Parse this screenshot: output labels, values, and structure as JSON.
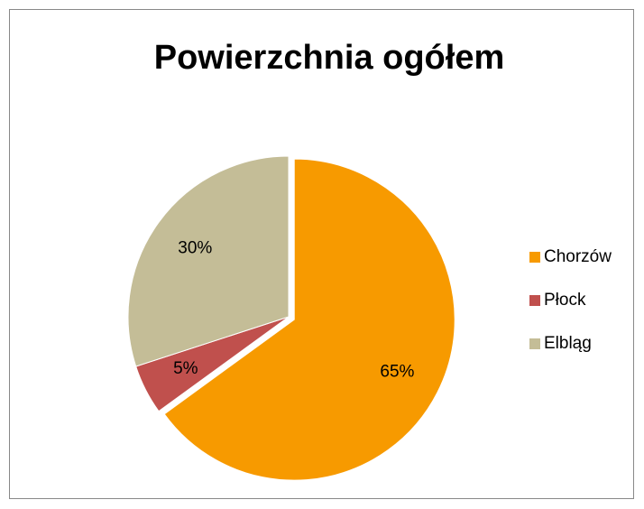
{
  "chart_data": {
    "type": "pie",
    "title": "Powierzchnia ogółem",
    "categories": [
      "Chorzów",
      "Płock",
      "Elbląg"
    ],
    "values": [
      65,
      5,
      30
    ],
    "value_labels": [
      "65%",
      "5%",
      "30%"
    ],
    "colors": [
      "#f79a00",
      "#c0504d",
      "#c4bd97"
    ],
    "legend": "right"
  }
}
